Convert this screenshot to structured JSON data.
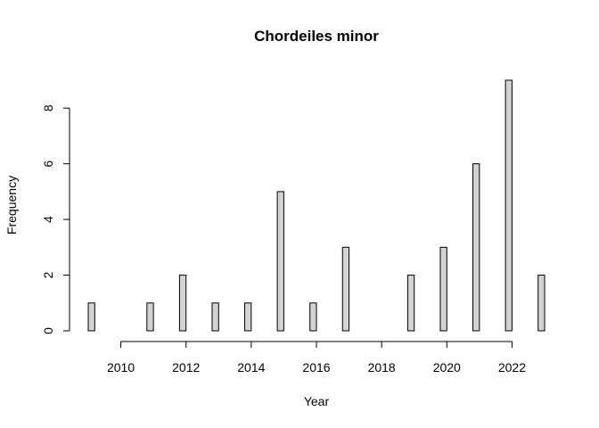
{
  "chart_data": {
    "type": "bar",
    "title": "Chordeiles minor",
    "xlabel": "Year",
    "ylabel": "Frequency",
    "xlim": [
      2009,
      2023
    ],
    "ylim": [
      0,
      9
    ],
    "x_ticks": [
      2010,
      2012,
      2014,
      2016,
      2018,
      2020,
      2022
    ],
    "y_ticks": [
      0,
      2,
      4,
      6,
      8
    ],
    "bins": [
      {
        "start": 2009.0,
        "end": 2009.2,
        "value": 1
      },
      {
        "start": 2009.2,
        "end": 2010.8,
        "value": 0
      },
      {
        "start": 2010.8,
        "end": 2011.0,
        "value": 1
      },
      {
        "start": 2011.0,
        "end": 2011.8,
        "value": 0
      },
      {
        "start": 2011.8,
        "end": 2012.0,
        "value": 2
      },
      {
        "start": 2012.0,
        "end": 2012.8,
        "value": 0
      },
      {
        "start": 2012.8,
        "end": 2013.0,
        "value": 1
      },
      {
        "start": 2013.0,
        "end": 2013.8,
        "value": 0
      },
      {
        "start": 2013.8,
        "end": 2014.0,
        "value": 1
      },
      {
        "start": 2014.0,
        "end": 2014.8,
        "value": 0
      },
      {
        "start": 2014.8,
        "end": 2015.0,
        "value": 5
      },
      {
        "start": 2015.0,
        "end": 2015.8,
        "value": 0
      },
      {
        "start": 2015.8,
        "end": 2016.0,
        "value": 1
      },
      {
        "start": 2016.0,
        "end": 2016.8,
        "value": 0
      },
      {
        "start": 2016.8,
        "end": 2017.0,
        "value": 3
      },
      {
        "start": 2017.0,
        "end": 2018.8,
        "value": 0
      },
      {
        "start": 2018.8,
        "end": 2019.0,
        "value": 2
      },
      {
        "start": 2019.0,
        "end": 2019.8,
        "value": 0
      },
      {
        "start": 2019.8,
        "end": 2020.0,
        "value": 3
      },
      {
        "start": 2020.0,
        "end": 2020.8,
        "value": 0
      },
      {
        "start": 2020.8,
        "end": 2021.0,
        "value": 6
      },
      {
        "start": 2021.0,
        "end": 2021.8,
        "value": 0
      },
      {
        "start": 2021.8,
        "end": 2022.0,
        "value": 9
      },
      {
        "start": 2022.0,
        "end": 2022.8,
        "value": 0
      },
      {
        "start": 2022.8,
        "end": 2023.0,
        "value": 2
      }
    ],
    "colors": {
      "bar_fill": "#d3d3d3",
      "bar_stroke": "#000000"
    },
    "grid": false,
    "legend": "none"
  }
}
